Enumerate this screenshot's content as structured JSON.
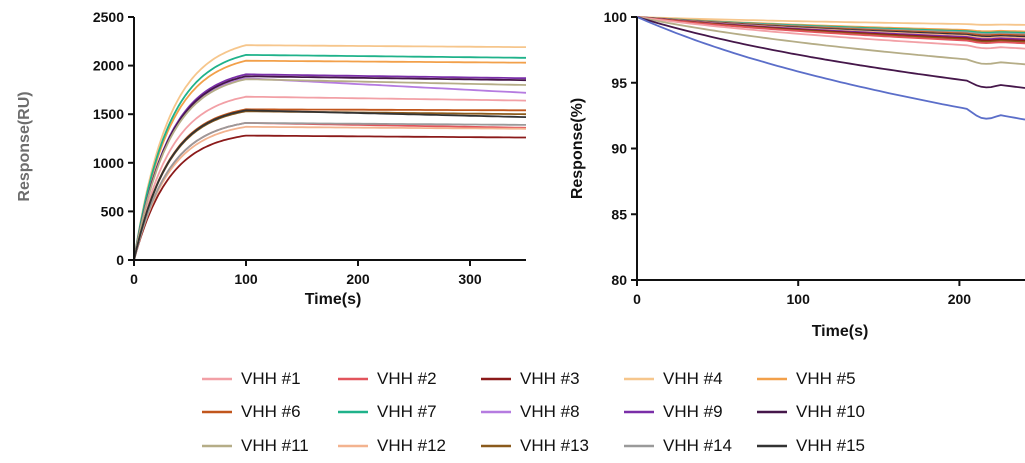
{
  "chart_data": [
    {
      "type": "line",
      "title": "",
      "xlabel": "Time(s)",
      "ylabel": "Response(RU)",
      "xlim": [
        0,
        350
      ],
      "ylim": [
        0,
        2500
      ],
      "xticks": [
        "0",
        "100",
        "200",
        "300"
      ],
      "yticks": [
        "0",
        "500",
        "1000",
        "1500",
        "2000",
        "2500"
      ],
      "association_end_s": 100,
      "series": [
        {
          "name": "VHH #1",
          "color": "#f2a0a6",
          "plateau": 1680,
          "end": 1640
        },
        {
          "name": "VHH #2",
          "color": "#e2545c",
          "plateau": 1410,
          "end": 1360
        },
        {
          "name": "VHH #3",
          "color": "#8b1a1a",
          "plateau": 1280,
          "end": 1260
        },
        {
          "name": "VHH #4",
          "color": "#f6c68c",
          "plateau": 2210,
          "end": 2190
        },
        {
          "name": "VHH #5",
          "color": "#f2a04a",
          "plateau": 2050,
          "end": 2030
        },
        {
          "name": "VHH #6",
          "color": "#c1561c",
          "plateau": 1550,
          "end": 1540
        },
        {
          "name": "VHH #7",
          "color": "#1fb28a",
          "plateau": 2110,
          "end": 2080
        },
        {
          "name": "VHH #8",
          "color": "#b57be0",
          "plateau": 1870,
          "end": 1720
        },
        {
          "name": "VHH #9",
          "color": "#7a2ea8",
          "plateau": 1910,
          "end": 1870
        },
        {
          "name": "VHH #10",
          "color": "#45174a",
          "plateau": 1890,
          "end": 1850
        },
        {
          "name": "VHH #11",
          "color": "#b5ad87",
          "plateau": 1860,
          "end": 1800
        },
        {
          "name": "VHH #12",
          "color": "#f3b38f",
          "plateau": 1370,
          "end": 1350
        },
        {
          "name": "VHH #13",
          "color": "#8a5a1c",
          "plateau": 1530,
          "end": 1500
        },
        {
          "name": "VHH #14",
          "color": "#9a9a9a",
          "plateau": 1410,
          "end": 1390
        },
        {
          "name": "VHH #15",
          "color": "#333333",
          "plateau": 1540,
          "end": 1470
        }
      ]
    },
    {
      "type": "line",
      "title": "",
      "xlabel": "Time(s)",
      "ylabel": "Response(%)",
      "xlim": [
        0,
        250
      ],
      "ylim": [
        80,
        100
      ],
      "xticks": [
        "0",
        "100",
        "200"
      ],
      "yticks": [
        "80",
        "85",
        "90",
        "95",
        "100"
      ],
      "series": [
        {
          "name": "VHH #1",
          "color": "#f2a0a6",
          "end": 97.6
        },
        {
          "name": "VHH #2",
          "color": "#e2545c",
          "end": 98.0
        },
        {
          "name": "VHH #3",
          "color": "#8b1a1a",
          "end": 98.2
        },
        {
          "name": "VHH #4",
          "color": "#f6c68c",
          "end": 99.4
        },
        {
          "name": "VHH #5",
          "color": "#f2a04a",
          "end": 98.9
        },
        {
          "name": "VHH #6",
          "color": "#c1561c",
          "end": 98.6
        },
        {
          "name": "VHH #7",
          "color": "#1fb28a",
          "end": 98.8
        },
        {
          "name": "VHH #8",
          "color": "#b57be0",
          "end": 98.5
        },
        {
          "name": "VHH #9",
          "color": "#7a2ea8",
          "end": 98.3
        },
        {
          "name": "VHH #10",
          "color": "#45174a",
          "end": 94.6
        },
        {
          "name": "VHH #11",
          "color": "#b5ad87",
          "end": 96.4
        },
        {
          "name": "VHH #12",
          "color": "#f3b38f",
          "end": 98.4
        },
        {
          "name": "VHH #13",
          "color": "#8a5a1c",
          "end": 98.1
        },
        {
          "name": "VHH #14",
          "color": "#9a9a9a",
          "end": 98.7
        },
        {
          "name": "VHH #15",
          "color": "#333333",
          "end": 98.5
        },
        {
          "name": "",
          "color": "#5b6ec9",
          "end": 92.2
        }
      ]
    }
  ]
}
